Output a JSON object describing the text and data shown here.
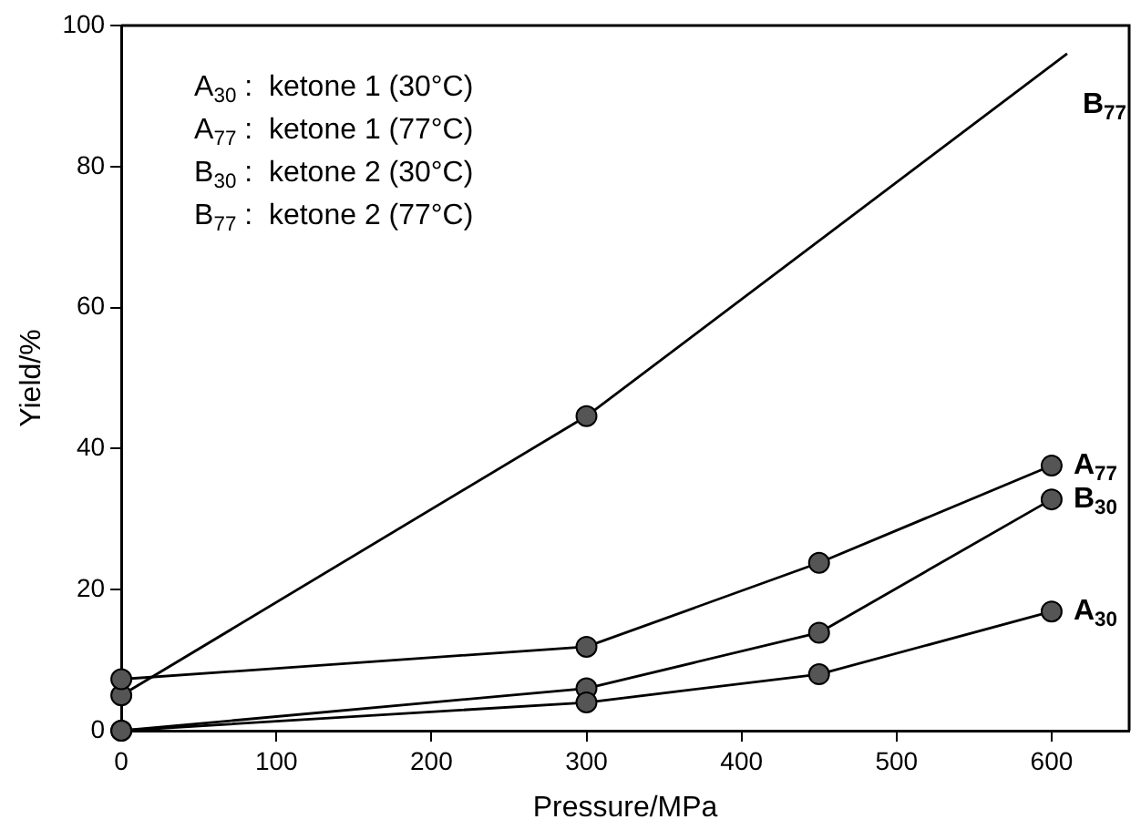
{
  "chart_data": {
    "type": "line",
    "xlabel": "Pressure/MPa",
    "ylabel": "Yield/%",
    "xlim": [
      0,
      650
    ],
    "xticks": [
      0,
      100,
      200,
      300,
      400,
      500,
      600
    ],
    "ylim": [
      0,
      100
    ],
    "yticks": [
      0,
      20,
      40,
      60,
      80,
      100
    ],
    "grid": false,
    "legend": false,
    "marker": "circle",
    "line_style": "solid",
    "series": [
      {
        "name": "A$_{30}$",
        "color": "#000000",
        "x": [
          0,
          300,
          450,
          600
        ],
        "values": [
          0,
          4,
          8,
          16.9
        ]
      },
      {
        "name": "A$_{77}$",
        "color": "#000000",
        "x": [
          0,
          300,
          450,
          600
        ],
        "values": [
          7.3,
          11.9,
          23.8,
          37.6
        ]
      },
      {
        "name": "B$_{30}$",
        "color": "#000000",
        "x": [
          0,
          300,
          450,
          600
        ],
        "values": [
          0,
          6,
          13.9,
          32.8
        ]
      },
      {
        "color": "#000000",
        "x": [
          0,
          300
        ],
        "values": [
          5,
          44.6
        ]
      },
      {
        "name": "B$_{77}$",
        "color": "#000000",
        "x": [
          300,
          610
        ],
        "values": [
          44.6,
          96
        ],
        "marker": "none"
      }
    ],
    "annotations": [
      "A$_{30}$ :  ketone 1 (30°C)",
      "A$_{77}$ :  ketone 1 (77°C)",
      "B$_{30}$ :  ketone 2 (30°C)",
      "B$_{77}$ :  ketone 2 (77°C)"
    ]
  }
}
